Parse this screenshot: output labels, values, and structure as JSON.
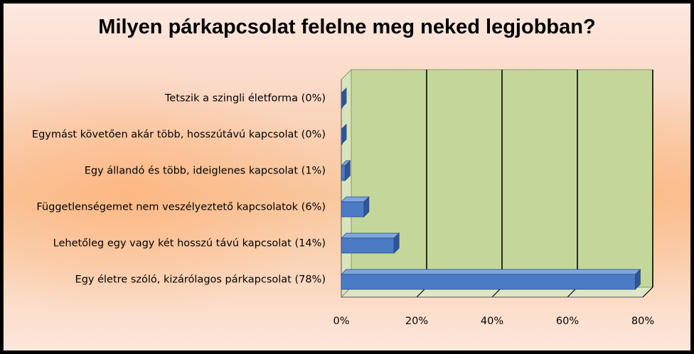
{
  "chart_data": {
    "type": "bar",
    "orientation": "horizontal",
    "title": "Milyen párkapcsolat felelne meg neked legjobban?",
    "categories": [
      "Tetszik a szingli életforma (0%)",
      "Egymást követően akár több,  hosszútávú kapcsolat (0%)",
      "Egy állandó és több,  ideiglenes kapcsolat (1%)",
      "Függetlenségemet nem veszélyeztető kapcsolatok (6%)",
      "Lehetőleg egy vagy két hosszú távú kapcsolat (14%)",
      "Egy életre szóló,  kizárólagos párkapcsolat (78%)"
    ],
    "values": [
      0,
      0,
      1,
      6,
      14,
      78
    ],
    "xlim": [
      0,
      80
    ],
    "xticks": [
      "0%",
      "20%",
      "40%",
      "60%",
      "80%"
    ],
    "grid": true,
    "colors": {
      "bar": "#4a7bc4",
      "bar_side": "#2f5597",
      "bar_top": "#7ea6de",
      "plot_back": "#c4d79b",
      "plot_floor": "#dde7c6",
      "plot_wall": "#d7e4bd"
    }
  }
}
